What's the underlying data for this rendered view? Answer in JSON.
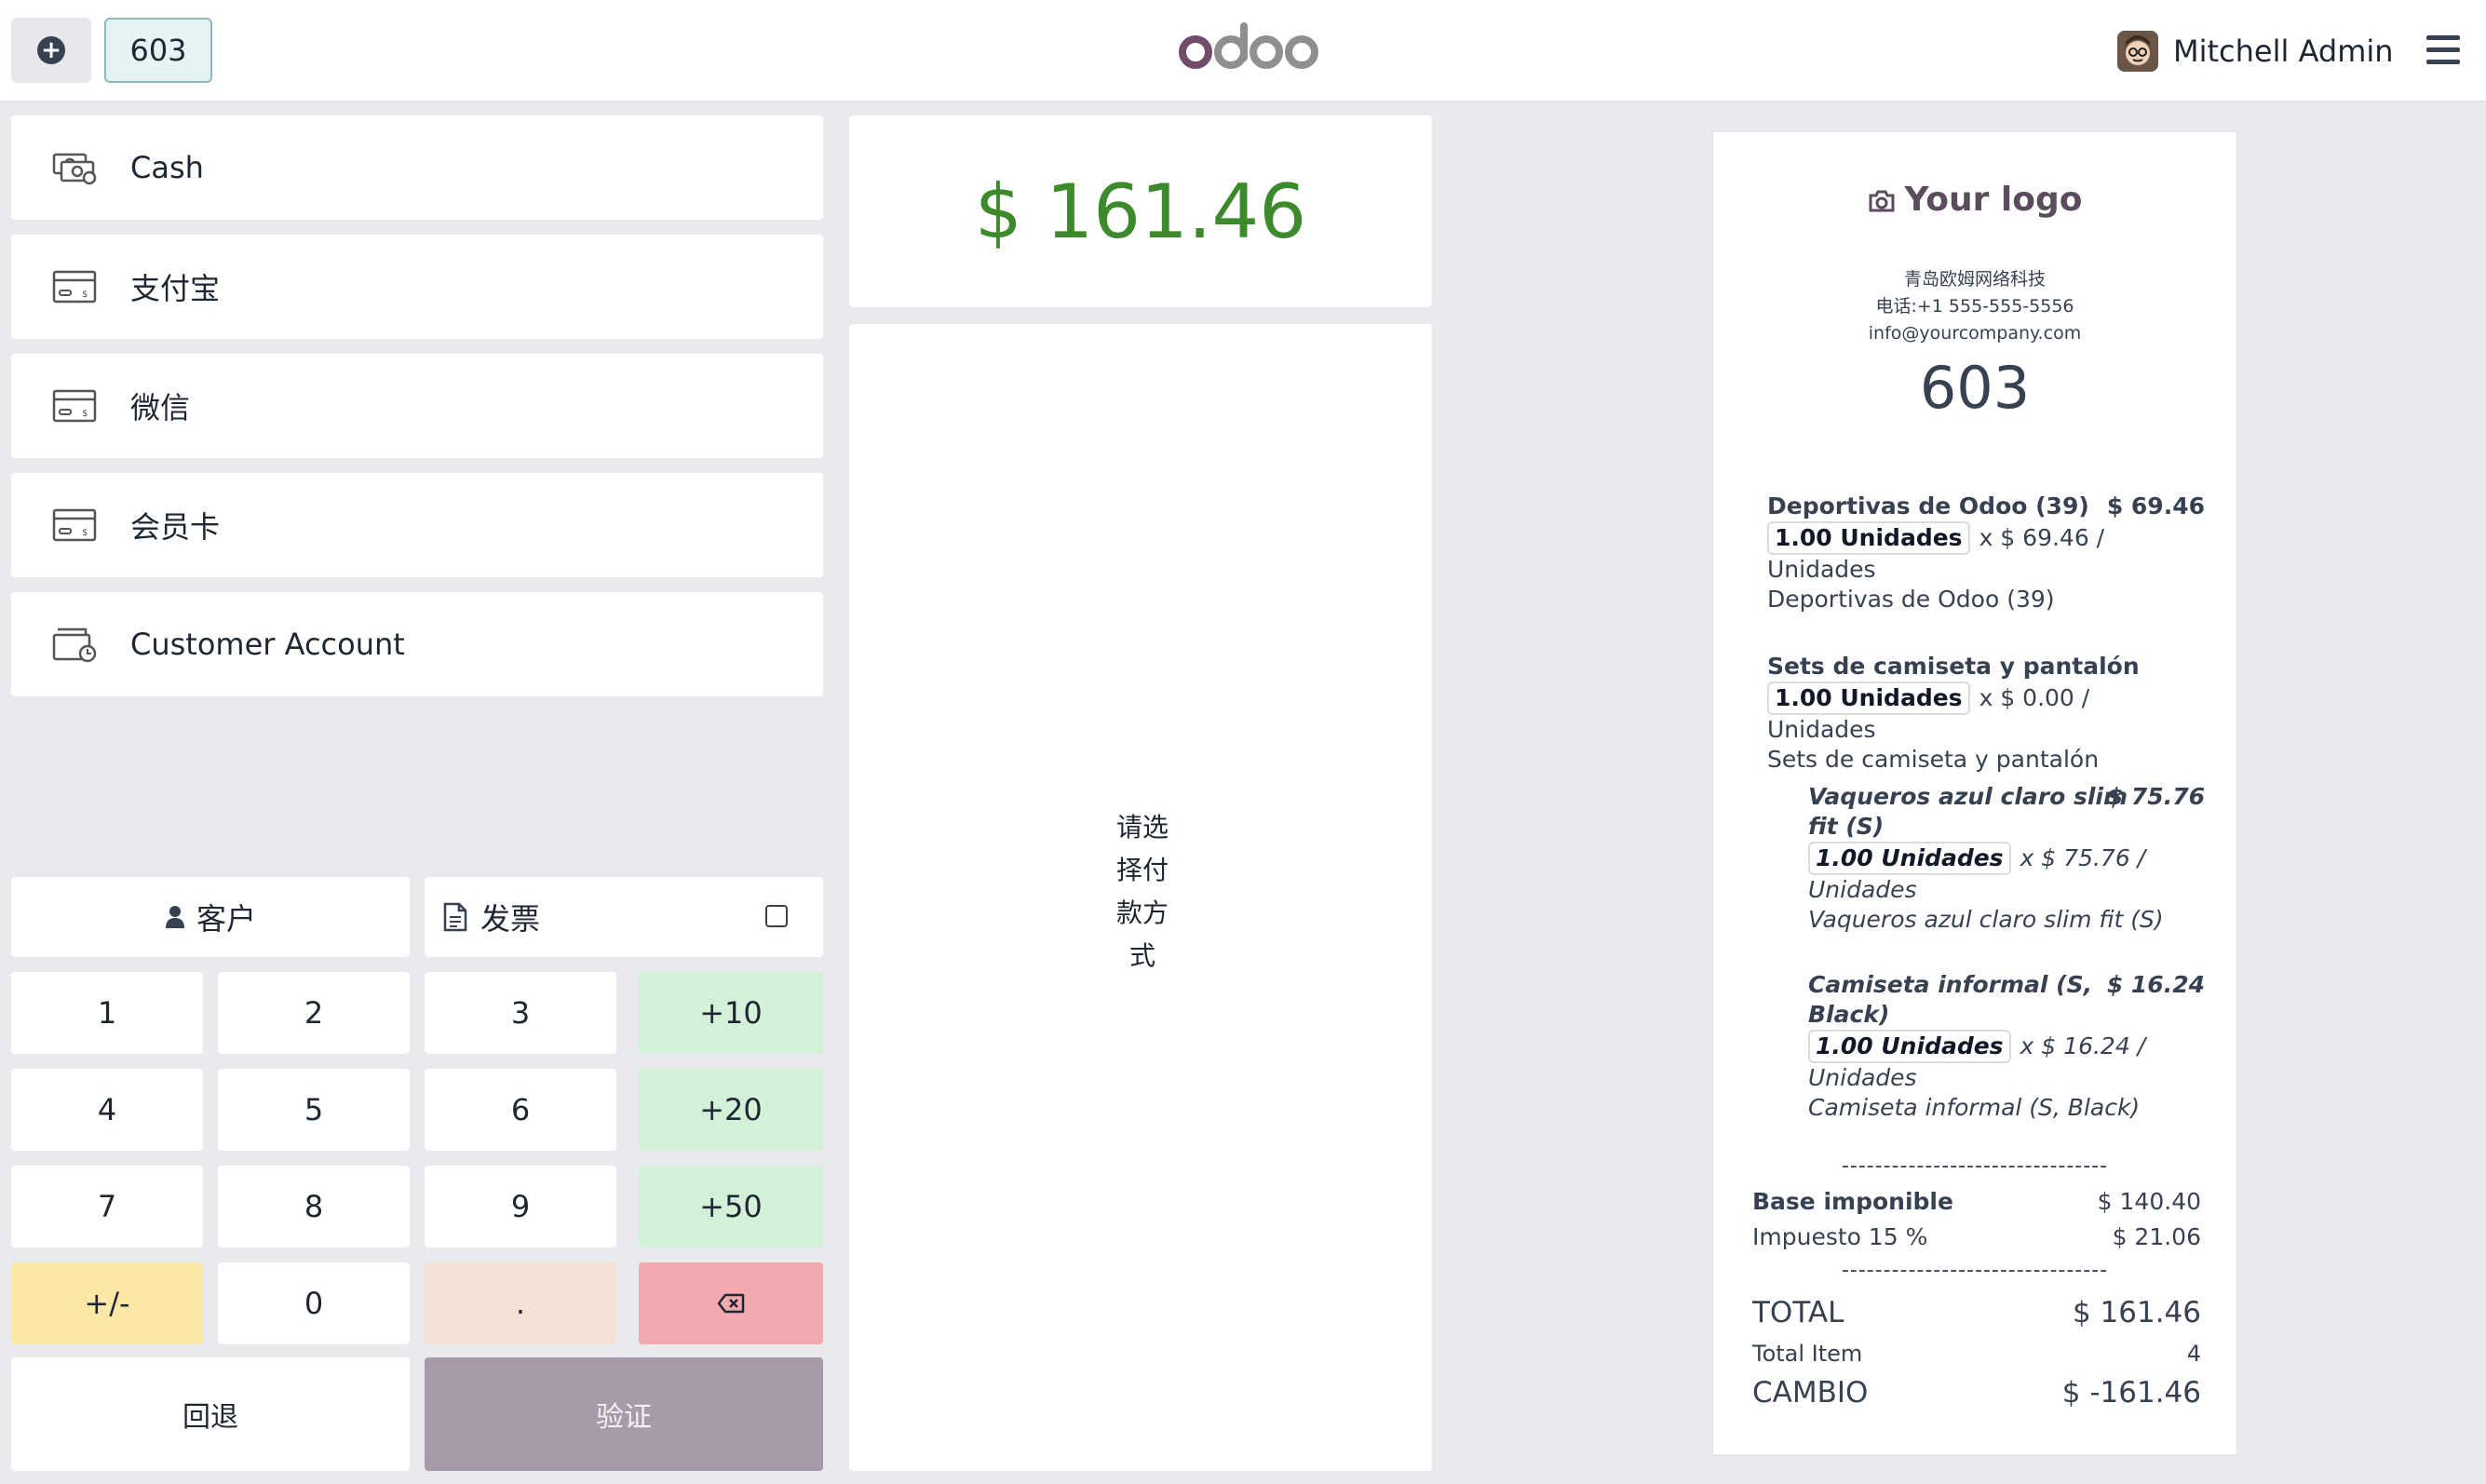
{
  "header": {
    "order_tab": "603",
    "user_name": "Mitchell Admin"
  },
  "payment_methods": [
    {
      "label": "Cash",
      "icon": "cash-icon"
    },
    {
      "label": "支付宝",
      "icon": "card-icon"
    },
    {
      "label": "微信",
      "icon": "card-icon"
    },
    {
      "label": "会员卡",
      "icon": "card-icon"
    },
    {
      "label": "Customer Account",
      "icon": "wallet-clock-icon"
    }
  ],
  "actions": {
    "customer": "客户",
    "invoice": "发票",
    "back": "回退",
    "validate": "验证"
  },
  "numpad": {
    "k1": "1",
    "k2": "2",
    "k3": "3",
    "plus10": "+10",
    "k4": "4",
    "k5": "5",
    "k6": "6",
    "plus20": "+20",
    "k7": "7",
    "k8": "8",
    "k9": "9",
    "plus50": "+50",
    "sign": "+/-",
    "k0": "0",
    "dot": "."
  },
  "payment": {
    "amount_due": "$ 161.46",
    "prompt_lines": [
      "请选",
      "择付",
      "款方",
      "式"
    ]
  },
  "receipt": {
    "logo_text": "Your logo",
    "company_name": "青岛欧姆网络科技",
    "phone": "电话:+1 555-555-5556",
    "email": "info@yourcompany.com",
    "order_number": "603",
    "lines": [
      {
        "name": "Deportivas de Odoo (39)",
        "price": "$ 69.46",
        "qty": "1.00 Unidades",
        "unit_price": "x $ 69.46 /",
        "unit_cont": "Unidades",
        "desc": "Deportivas de Odoo (39)"
      },
      {
        "name": "Sets de camiseta y pantalón",
        "price": "",
        "qty": "1.00 Unidades",
        "unit_price": "x $ 0.00 / Unidades",
        "desc": "Sets de camiseta y pantalón"
      },
      {
        "name_1": "Vaqueros azul claro slim",
        "name_2": "fit (S)",
        "price": "$ 75.76",
        "qty": "1.00 Unidades",
        "unit_price": "x $ 75.76 /",
        "unit_cont": "Unidades",
        "desc": "Vaqueros azul claro slim fit (S)"
      },
      {
        "name_1": "Camiseta informal (S,",
        "name_2": "Black)",
        "price": "$ 16.24",
        "qty": "1.00 Unidades",
        "unit_price": "x $ 16.24 /",
        "unit_cont": "Unidades",
        "desc": "Camiseta informal (S, Black)"
      }
    ],
    "separator": "--------------------------------",
    "base_label": "Base imponible",
    "base_value": "$ 140.40",
    "tax_label": "Impuesto 15 %",
    "tax_value": "$ 21.06",
    "total_label": "TOTAL",
    "total_value": "$ 161.46",
    "items_label": "Total Item",
    "items_value": "4",
    "change_label": "CAMBIO",
    "change_value": "$ -161.46"
  }
}
